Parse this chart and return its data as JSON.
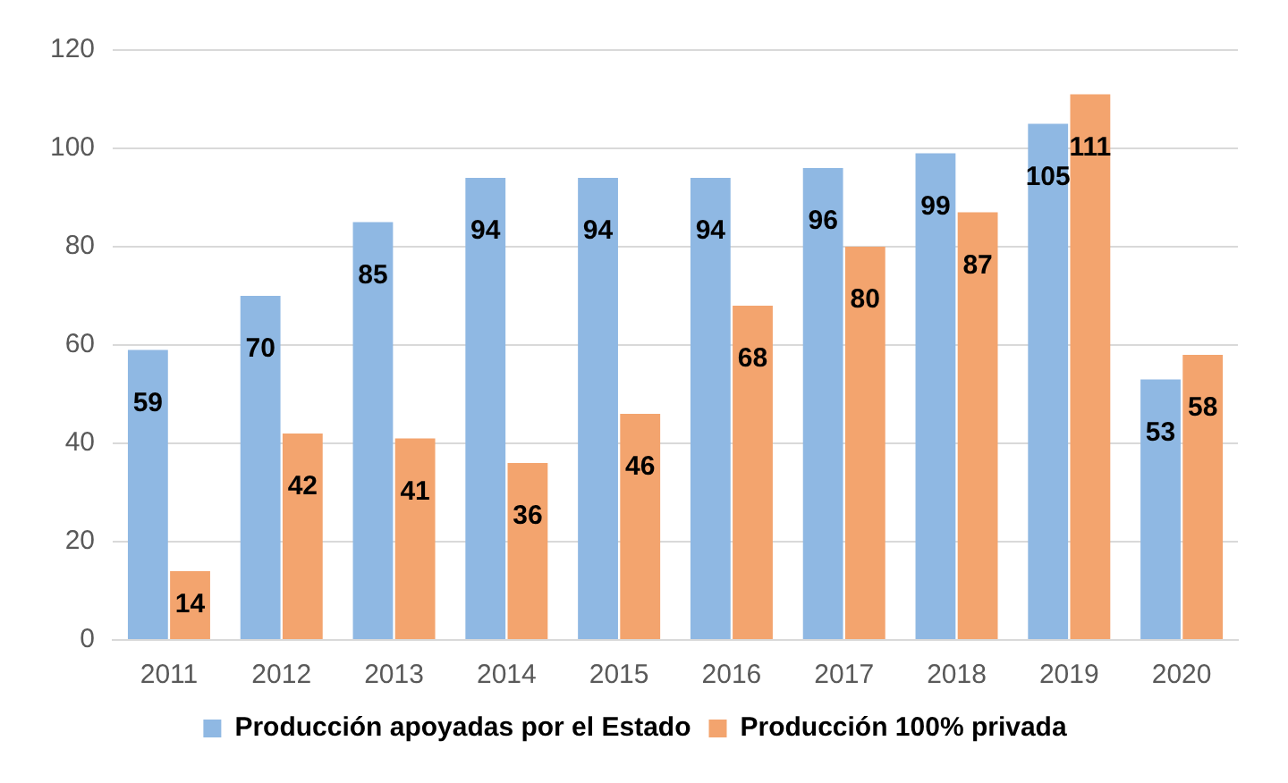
{
  "chart_data": {
    "type": "bar",
    "categories": [
      "2011",
      "2012",
      "2013",
      "2014",
      "2015",
      "2016",
      "2017",
      "2018",
      "2019",
      "2020"
    ],
    "series": [
      {
        "name": "Producción apoyadas por el Estado",
        "color": "#8fb8e3",
        "values": [
          59,
          70,
          85,
          94,
          94,
          94,
          96,
          99,
          105,
          53
        ]
      },
      {
        "name": "Producción 100% privada",
        "color": "#f3a46e",
        "values": [
          14,
          42,
          41,
          36,
          46,
          68,
          80,
          87,
          111,
          58
        ]
      }
    ],
    "ylim": [
      0,
      120
    ],
    "yticks": [
      0,
      20,
      40,
      60,
      80,
      100,
      120
    ],
    "grid": "y",
    "legend": "bottom",
    "data_labels": true
  }
}
